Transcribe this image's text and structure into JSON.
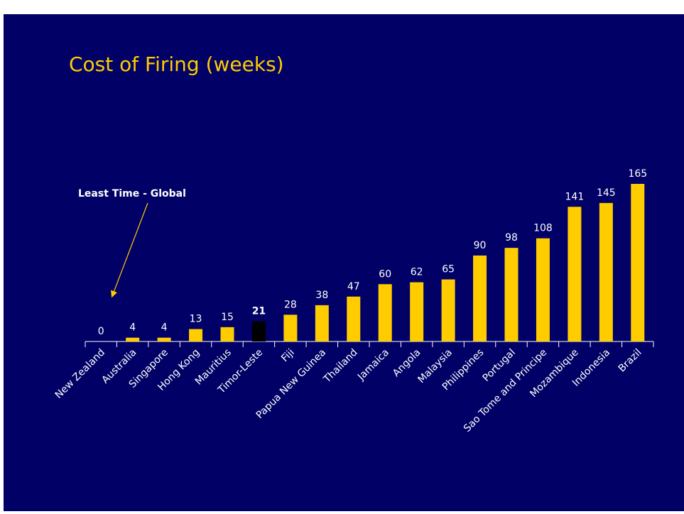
{
  "chart_data": {
    "type": "bar",
    "title": "Cost of Firing (weeks)",
    "categories": [
      "New Zealand",
      "Australia",
      "Singapore",
      "Hong Kong",
      "Mauritius",
      "Timor-Leste",
      "Fiji",
      "Papua New Guinea",
      "Thailand",
      "Jamaica",
      "Angola",
      "Malaysia",
      "Philippines",
      "Portugal",
      "Sao Tome and Principe",
      "Mozambique",
      "Indonesia",
      "Brazil"
    ],
    "values": [
      0,
      4,
      4,
      13,
      15,
      21,
      28,
      38,
      47,
      60,
      62,
      65,
      90,
      98,
      108,
      141,
      145,
      165
    ],
    "color": "#ffcc00",
    "colors": [
      "#ffcc00",
      "#ffcc00",
      "#ffcc00",
      "#ffcc00",
      "#ffcc00",
      "#000000",
      "#ffcc00",
      "#ffcc00",
      "#ffcc00",
      "#ffcc00",
      "#ffcc00",
      "#ffcc00",
      "#ffcc00",
      "#ffcc00",
      "#ffcc00",
      "#ffcc00",
      "#ffcc00",
      "#ffcc00"
    ],
    "ylim": [
      0,
      165
    ],
    "annotation": "Least  Time  - Global"
  }
}
